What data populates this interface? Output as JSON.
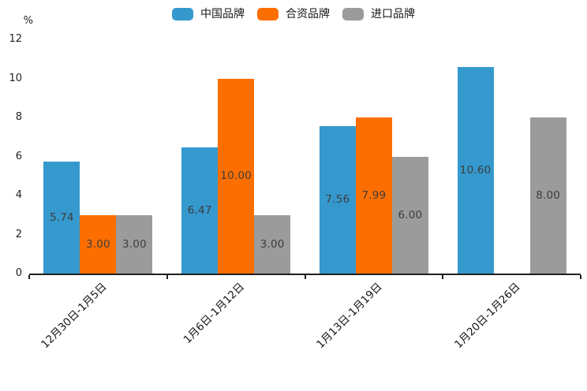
{
  "chart_data": {
    "type": "bar",
    "title": "",
    "xlabel": "",
    "ylabel": "%",
    "categories": [
      "12月30日-1月5日",
      "1月6日-1月12日",
      "1月13日-1月19日",
      "1月20日-1月26日"
    ],
    "series": [
      {
        "name": "中国品牌",
        "color": "#3599CE",
        "values": [
          5.74,
          6.47,
          7.56,
          10.6
        ]
      },
      {
        "name": "合资品牌",
        "color": "#FD6E01",
        "values": [
          3.0,
          10.0,
          7.99,
          null
        ]
      },
      {
        "name": "进口品牌",
        "color": "#9B9B9B",
        "values": [
          3.0,
          3.0,
          6.0,
          8.0
        ]
      }
    ],
    "value_labels": [
      [
        "5.74",
        "3.00",
        "3.00"
      ],
      [
        "6.47",
        "10.00",
        "3.00"
      ],
      [
        "7.56",
        "7.99",
        "6.00"
      ],
      [
        "10.60",
        null,
        "8.00"
      ]
    ],
    "ylim": [
      0,
      12
    ],
    "yticks": [
      0,
      2,
      4,
      6,
      8,
      10,
      12
    ],
    "grid": false,
    "legend_position": "top",
    "colors": {
      "axis": "#1f1f1f",
      "bar_value_label": "#3d3d3d",
      "tick_label": "#1f1f1f",
      "background": "#ffffff"
    }
  }
}
